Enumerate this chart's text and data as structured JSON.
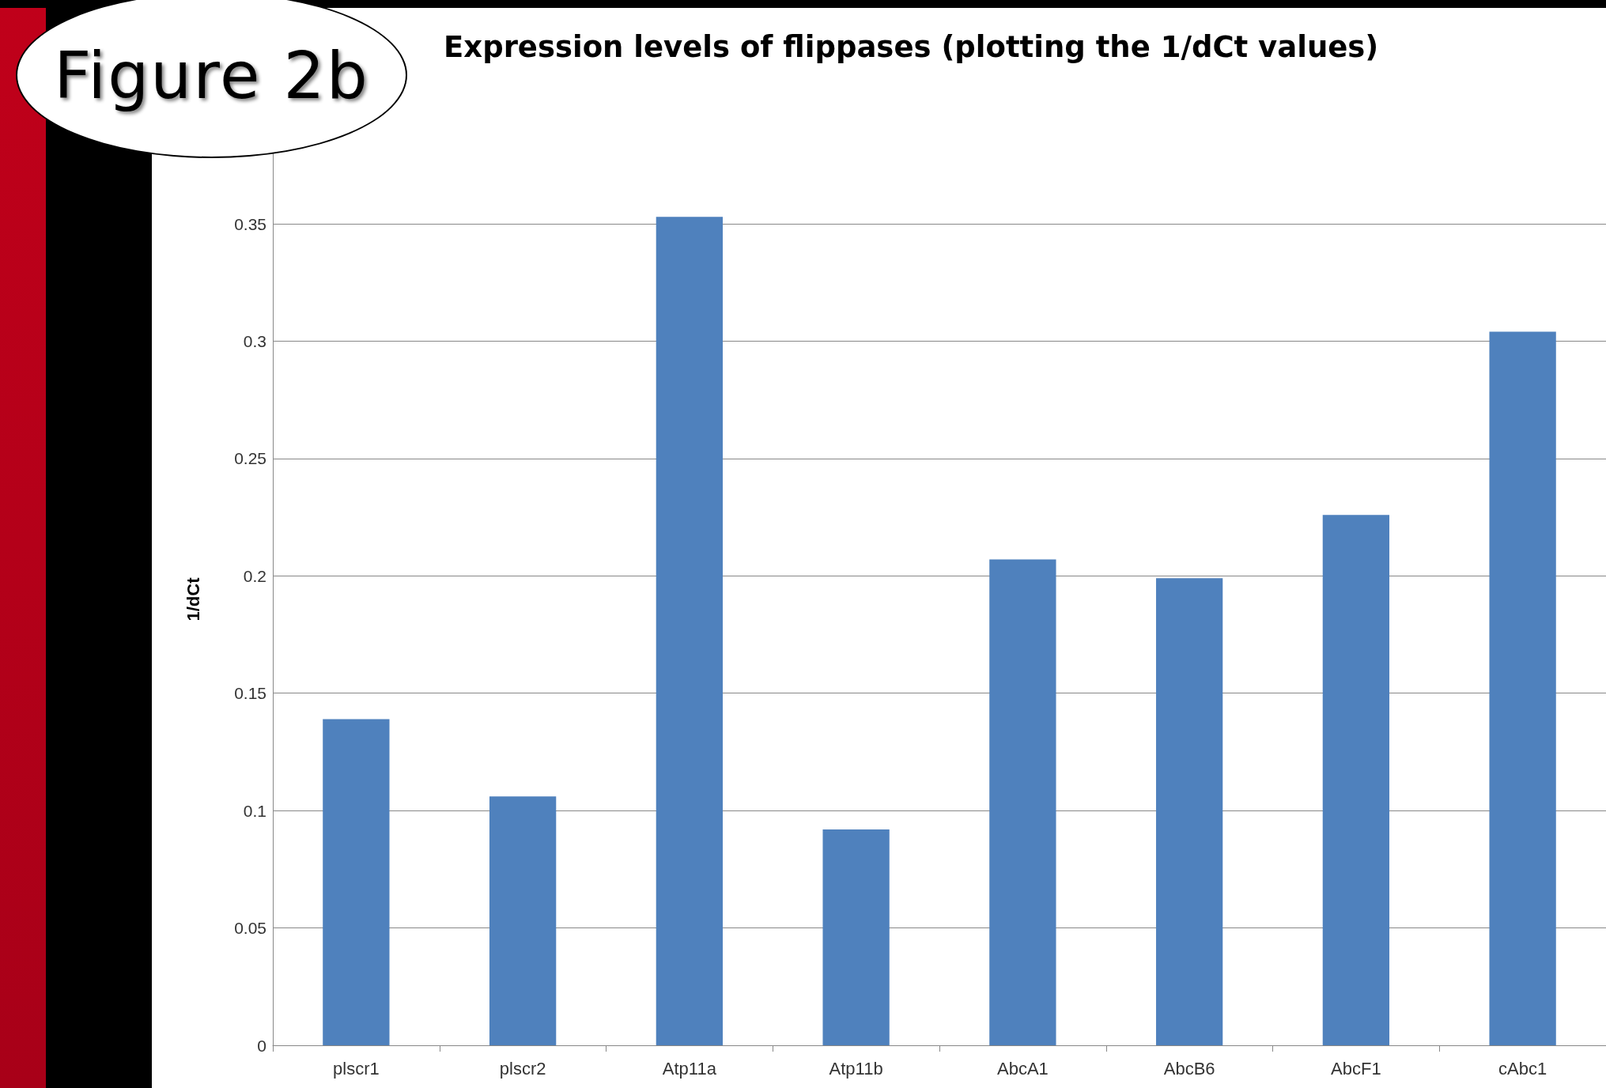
{
  "chart_data": {
    "type": "bar",
    "title": "Expression levels of flippases (plotting the 1/dCt values)",
    "ylabel": "1/dCt",
    "annotations": [
      "Figure 2b"
    ],
    "categories": [
      "plscr1",
      "plscr2",
      "Atp11a",
      "Atp11b",
      "AbcA1",
      "AbcB6",
      "AbcF1",
      "cAbc1"
    ],
    "values": [
      0.139,
      0.106,
      0.353,
      0.092,
      0.207,
      0.199,
      0.226,
      0.304
    ],
    "color": "#4f81bd",
    "ylim": [
      0,
      0.38
    ],
    "yticks": [
      0,
      0.05,
      0.1,
      0.15,
      0.2,
      0.25,
      0.3,
      0.35
    ],
    "grid": "y"
  }
}
